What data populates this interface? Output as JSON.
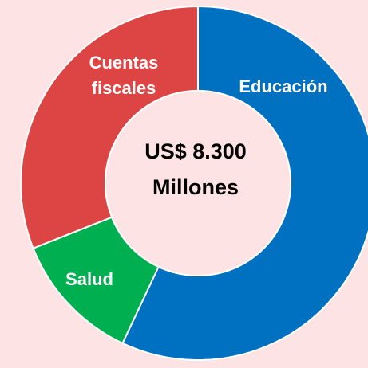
{
  "chart_data": {
    "type": "donut",
    "center_text": [
      "US$ 8.300",
      "Millones"
    ],
    "categories": [
      "Educación",
      "Salud",
      "Cuentas fiscales"
    ],
    "values": [
      57,
      12,
      31
    ],
    "colors": [
      "#0070c0",
      "#00b050",
      "#dd4444"
    ]
  }
}
